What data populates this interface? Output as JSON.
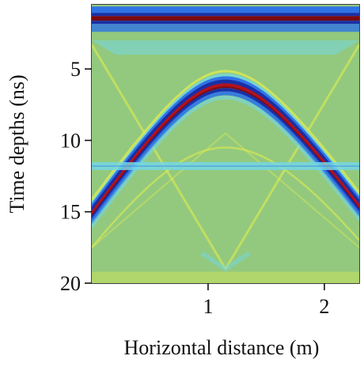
{
  "chart_data": {
    "type": "heatmap",
    "subtype": "gpr-radargram",
    "title": "",
    "xlabel": "Horizontal distance (m)",
    "ylabel": "Time depths (ns)",
    "xlim": [
      0,
      2.3
    ],
    "ylim": [
      20,
      0.5
    ],
    "y_inverted": true,
    "x_ticks": [
      {
        "value": 1,
        "label": "1"
      },
      {
        "value": 2,
        "label": "2"
      }
    ],
    "y_ticks": [
      {
        "value": 5,
        "label": "5"
      },
      {
        "value": 10,
        "label": "10"
      },
      {
        "value": 15,
        "label": "15"
      },
      {
        "value": 20,
        "label": "20"
      }
    ],
    "colormap": "jet",
    "colors": {
      "background": "#93c97e",
      "deep_blue": "#1a2fa6",
      "blue": "#2f74e6",
      "cyan": "#74d7e3",
      "yellow": "#e8ee4a",
      "red": "#b3121d",
      "dark_red": "#7a0a12"
    },
    "features": {
      "direct_wave": {
        "time_ns": 1.4,
        "band": "red-blue"
      },
      "hyperbola_apex": {
        "x_m": 1.15,
        "time_ns": 6.0
      },
      "hyperbola_left_end": {
        "x_m": 0.0,
        "time_ns": 15.0
      },
      "hyperbola_right_end": {
        "x_m": 2.25,
        "time_ns": 14.5
      },
      "horizontal_reflector": {
        "time_ns": 11.8,
        "color": "cyan"
      },
      "secondary_hyperbola_apex": {
        "x_m": 1.15,
        "time_ns": 10.5
      },
      "diagonal_wave_apex": {
        "x_m": 1.15,
        "time_ns": 19.0
      }
    }
  }
}
